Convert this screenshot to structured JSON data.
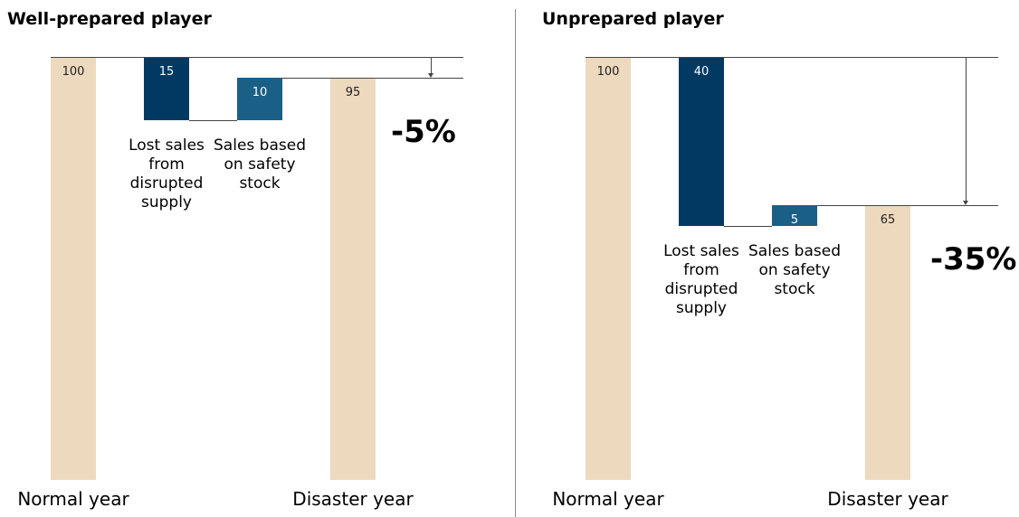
{
  "chart_data": [
    {
      "type": "waterfall",
      "title": "Well-prepared player",
      "categories": [
        "Normal year",
        "Lost sales from disrupted supply",
        "Sales based on safety stock",
        "Disaster year"
      ],
      "values": [
        100,
        15,
        10,
        95
      ],
      "measures": [
        "total",
        "decrease",
        "increase",
        "total"
      ],
      "colors": [
        "#edd9be",
        "#003a63",
        "#1a5f86",
        "#edd9be"
      ],
      "annotation": "-5%"
    },
    {
      "type": "waterfall",
      "title": "Unprepared player",
      "categories": [
        "Normal year",
        "Lost sales from disrupted supply",
        "Sales based on safety stock",
        "Disaster year"
      ],
      "values": [
        100,
        40,
        5,
        65
      ],
      "measures": [
        "total",
        "decrease",
        "increase",
        "total"
      ],
      "colors": [
        "#edd9be",
        "#003a63",
        "#1a5f86",
        "#edd9be"
      ],
      "annotation": "-35%"
    }
  ]
}
